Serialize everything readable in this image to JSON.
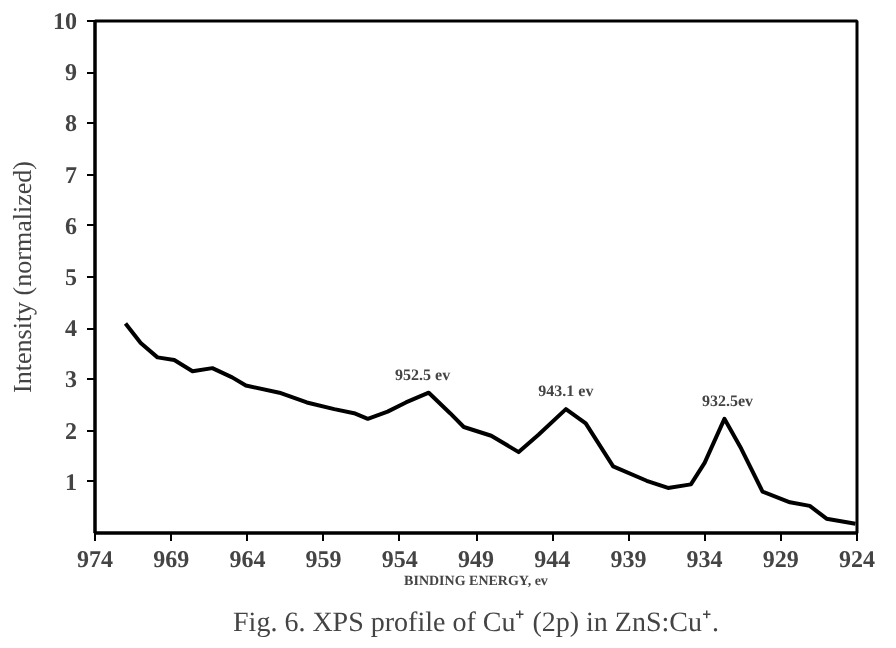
{
  "chart_data": {
    "type": "line",
    "title": "Fig. 6. XPS profile of Cu⁺ (2p) in ZnS:Cu⁺.",
    "xlabel": "BINDING ENERGY, ev",
    "ylabel": "Intensity (normalized)",
    "x": [
      972.0,
      971.0,
      969.9,
      968.8,
      967.6,
      966.3,
      965.0,
      964.1,
      961.9,
      960.1,
      958.3,
      957.0,
      956.1,
      954.8,
      953.6,
      952.1,
      950.7,
      949.8,
      948.0,
      946.2,
      944.9,
      943.1,
      941.8,
      940.0,
      937.8,
      936.4,
      934.9,
      934.0,
      932.7,
      931.6,
      930.2,
      928.4,
      927.1,
      926.0,
      924.1
    ],
    "series": [
      {
        "color": "#000000",
        "values": [
          4.09,
          3.71,
          3.43,
          3.38,
          3.16,
          3.22,
          3.04,
          2.88,
          2.74,
          2.55,
          2.42,
          2.34,
          2.23,
          2.37,
          2.55,
          2.74,
          2.34,
          2.07,
          1.9,
          1.58,
          1.92,
          2.42,
          2.14,
          1.3,
          1.02,
          0.88,
          0.95,
          1.37,
          2.23,
          1.65,
          0.81,
          0.6,
          0.53,
          0.28,
          0.18
        ]
      }
    ],
    "annotations": [
      {
        "text": "952.5 ev",
        "x": 952.5,
        "y": 2.75
      },
      {
        "text": "943.1 ev",
        "x": 943.1,
        "y": 2.45
      },
      {
        "text": "932.5ev",
        "x": 932.5,
        "y": 2.25
      }
    ],
    "xlim": [
      974,
      924
    ],
    "ylim": [
      0,
      10
    ],
    "xticks": [
      974,
      969,
      964,
      959,
      954,
      949,
      944,
      939,
      934,
      929,
      924
    ],
    "yticks": [
      1,
      2,
      3,
      4,
      5,
      6,
      7,
      8,
      9,
      10
    ],
    "grid": false,
    "marker": "none",
    "line_style": "solid"
  }
}
